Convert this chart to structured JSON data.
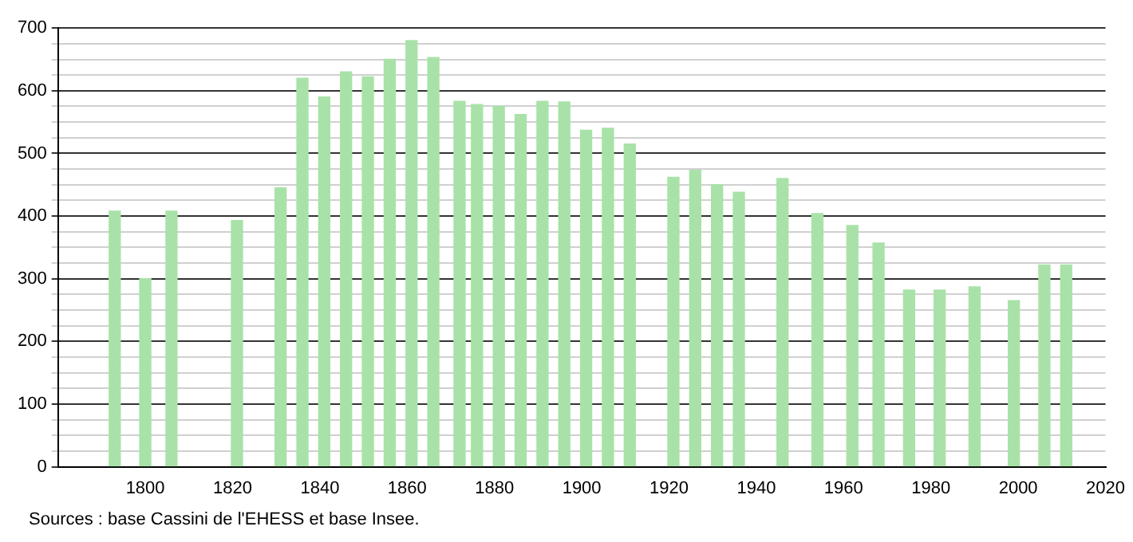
{
  "chart_data": {
    "type": "bar",
    "x": [
      1793,
      1800,
      1806,
      1821,
      1831,
      1836,
      1841,
      1846,
      1851,
      1856,
      1861,
      1866,
      1872,
      1876,
      1881,
      1886,
      1891,
      1896,
      1901,
      1906,
      1911,
      1921,
      1926,
      1931,
      1936,
      1946,
      1954,
      1962,
      1968,
      1975,
      1982,
      1990,
      1999,
      2006,
      2011
    ],
    "values": [
      408,
      300,
      408,
      393,
      445,
      620,
      590,
      630,
      622,
      650,
      680,
      653,
      583,
      578,
      575,
      562,
      583,
      582,
      537,
      540,
      515,
      462,
      473,
      450,
      438,
      460,
      404,
      385,
      357,
      282,
      282,
      287,
      265,
      322,
      322
    ],
    "color": "#a8e2a8",
    "xlim": [
      1780,
      2020
    ],
    "xticks": [
      1800,
      1820,
      1840,
      1860,
      1880,
      1900,
      1920,
      1940,
      1960,
      1980,
      2000,
      2020
    ],
    "ylim": [
      0,
      700
    ],
    "yticks": [
      0,
      {
        "value": 25,
        "label": null
      },
      {
        "value": 50,
        "label": null
      },
      {
        "value": 75,
        "label": null
      },
      100,
      {
        "value": 125,
        "label": null
      },
      {
        "value": 150,
        "label": null
      },
      {
        "value": 175,
        "label": null
      },
      200,
      {
        "value": 225,
        "label": null
      },
      {
        "value": 250,
        "label": null
      },
      {
        "value": 275,
        "label": null
      },
      300,
      {
        "value": 325,
        "label": null
      },
      {
        "value": 350,
        "label": null
      },
      {
        "value": 375,
        "label": null
      },
      400,
      {
        "value": 425,
        "label": null
      },
      {
        "value": 450,
        "label": null
      },
      {
        "value": 475,
        "label": null
      },
      500,
      {
        "value": 525,
        "label": null
      },
      {
        "value": 550,
        "label": null
      },
      {
        "value": 575,
        "label": null
      },
      600,
      {
        "value": 625,
        "label": null
      },
      {
        "value": 650,
        "label": null
      },
      {
        "value": 675,
        "label": null
      },
      700
    ],
    "grid": "y",
    "legend": false,
    "annotations": [
      "Sources : base Cassini de l'EHESS et base Insee."
    ]
  }
}
